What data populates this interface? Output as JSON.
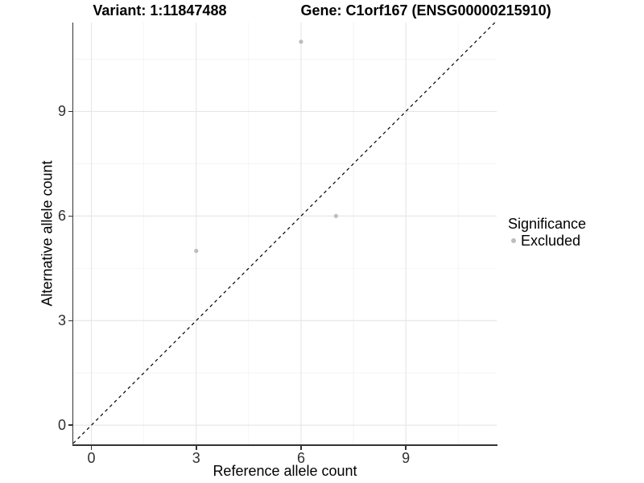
{
  "colors": {
    "background": "#ffffff",
    "axis_line": "#333333",
    "tick_text": "#303030",
    "grid_major": "#e6e6e6",
    "grid_minor": "#f0f0f0",
    "point": "#bdbdbd",
    "reference_line": "#000000"
  },
  "chart_data": {
    "type": "scatter",
    "titles": {
      "variant": "Variant: 1:11847488",
      "gene": "Gene: C1orf167 (ENSG00000215910)"
    },
    "xlabel": "Reference allele count",
    "ylabel": "Alternative allele count",
    "xlim": [
      -0.52,
      11.6
    ],
    "ylim": [
      -0.55,
      11.55
    ],
    "x_ticks": [
      0,
      3,
      6,
      9
    ],
    "y_ticks": [
      0,
      3,
      6,
      9
    ],
    "x_minor_ticks": [
      1.5,
      4.5,
      7.5,
      10.5
    ],
    "y_minor_ticks": [
      1.5,
      4.5,
      7.5,
      10.5
    ],
    "grid": true,
    "legend_position": "right",
    "series": [
      {
        "name": "Excluded",
        "color": "#bdbdbd",
        "marker": "circle",
        "points": [
          {
            "x": 3,
            "y": 5
          },
          {
            "x": 6,
            "y": 11
          },
          {
            "x": 7,
            "y": 6
          }
        ]
      }
    ],
    "reference_line": {
      "kind": "identity",
      "slope": 1,
      "intercept": 0,
      "style": "dashed",
      "color": "#000000"
    },
    "legend": {
      "title": "Significance",
      "entries": [
        {
          "label": "Excluded",
          "color": "#bdbdbd",
          "marker": "circle"
        }
      ]
    }
  }
}
